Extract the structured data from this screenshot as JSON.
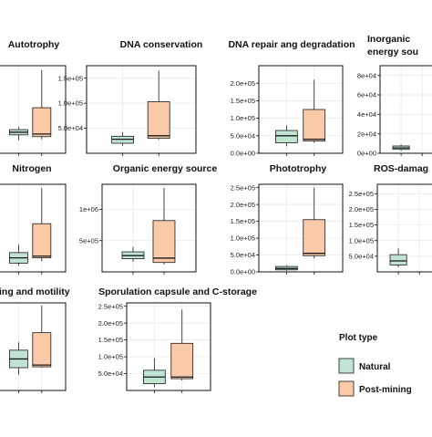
{
  "legend": {
    "title": "Plot type",
    "items": [
      {
        "label": "Natural",
        "color": "#bfe5d2"
      },
      {
        "label": "Post-mining",
        "color": "#f9c9a8"
      }
    ]
  },
  "colors": {
    "natural_fill": "#bfe5d2",
    "postmining_fill": "#f9c9a8",
    "stroke": "#1a1a1a",
    "grid": "#e6e6e6"
  },
  "chart_data": [
    {
      "type": "box",
      "title": "Autotrophy",
      "ylim": [
        0,
        1
      ],
      "y_ticks": [],
      "y_tick_labels": [],
      "boxes": [
        {
          "group": "Natural",
          "whisker_min": 0.15,
          "q1": 0.21,
          "median": 0.24,
          "q3": 0.27,
          "whisker_max": 0.3
        },
        {
          "group": "Post-mining",
          "whisker_min": 0.16,
          "q1": 0.19,
          "median": 0.22,
          "q3": 0.52,
          "whisker_max": 0.95
        }
      ]
    },
    {
      "type": "box",
      "title": "DNA conservation",
      "ylim": [
        0,
        175000
      ],
      "y_ticks": [
        50000,
        100000,
        150000
      ],
      "y_tick_labels": [
        "5.0e+04",
        "1.0e+05",
        "1.5e+05"
      ],
      "boxes": [
        {
          "group": "Natural",
          "whisker_min": 15000,
          "q1": 20000,
          "median": 28000,
          "q3": 34000,
          "whisker_max": 42000
        },
        {
          "group": "Post-mining",
          "whisker_min": 27000,
          "q1": 30000,
          "median": 35000,
          "q3": 103000,
          "whisker_max": 165000
        }
      ]
    },
    {
      "type": "box",
      "title": "DNA repair ang degradation",
      "ylim": [
        0,
        250000
      ],
      "y_ticks": [
        0,
        50000,
        100000,
        150000,
        200000
      ],
      "y_tick_labels": [
        "0.0e+00",
        "5.0e+04",
        "1.0e+05",
        "1.5e+05",
        "2.0e+05"
      ],
      "boxes": [
        {
          "group": "Natural",
          "whisker_min": 20000,
          "q1": 30000,
          "median": 50000,
          "q3": 65000,
          "whisker_max": 80000
        },
        {
          "group": "Post-mining",
          "whisker_min": 30000,
          "q1": 35000,
          "median": 40000,
          "q3": 125000,
          "whisker_max": 210000
        }
      ]
    },
    {
      "type": "box",
      "title": "Inorganic energy sou",
      "ylim": [
        0,
        90000
      ],
      "y_ticks": [
        0,
        20000,
        40000,
        60000,
        80000
      ],
      "y_tick_labels": [
        "0e+00",
        "2e+04",
        "4e+04",
        "6e+04",
        "8e+04"
      ],
      "boxes": [
        {
          "group": "Natural",
          "whisker_min": 2500,
          "q1": 4000,
          "median": 5500,
          "q3": 7500,
          "whisker_max": 9000
        }
      ]
    },
    {
      "type": "box",
      "title": "Nitrogen",
      "ylim": [
        0,
        1
      ],
      "y_ticks": [],
      "y_tick_labels": [],
      "boxes": [
        {
          "group": "Natural",
          "whisker_min": 0.07,
          "q1": 0.1,
          "median": 0.16,
          "q3": 0.22,
          "whisker_max": 0.31
        },
        {
          "group": "Post-mining",
          "whisker_min": 0.12,
          "q1": 0.16,
          "median": 0.18,
          "q3": 0.55,
          "whisker_max": 0.96
        }
      ]
    },
    {
      "type": "box",
      "title": "Organic energy source",
      "ylim": [
        0,
        1400000
      ],
      "y_ticks": [
        500000,
        1000000
      ],
      "y_tick_labels": [
        "5e+05",
        "1e+06"
      ],
      "boxes": [
        {
          "group": "Natural",
          "whisker_min": 160000,
          "q1": 210000,
          "median": 260000,
          "q3": 320000,
          "whisker_max": 400000
        },
        {
          "group": "Post-mining",
          "whisker_min": 120000,
          "q1": 150000,
          "median": 220000,
          "q3": 820000,
          "whisker_max": 1340000
        }
      ]
    },
    {
      "type": "box",
      "title": "Phototrophy",
      "ylim": [
        0,
        260000
      ],
      "y_ticks": [
        0,
        50000,
        100000,
        150000,
        200000,
        250000
      ],
      "y_tick_labels": [
        "0.0e+00",
        "5.0e+04",
        "1.0e+05",
        "1.5e+05",
        "2.0e+05",
        "2.5e+05"
      ],
      "boxes": [
        {
          "group": "Natural",
          "whisker_min": 3000,
          "q1": 6000,
          "median": 10000,
          "q3": 16000,
          "whisker_max": 20000
        },
        {
          "group": "Post-mining",
          "whisker_min": 40000,
          "q1": 48000,
          "median": 55000,
          "q3": 155000,
          "whisker_max": 250000
        }
      ]
    },
    {
      "type": "box",
      "title": "ROS-damag",
      "ylim": [
        0,
        280000
      ],
      "y_ticks": [
        50000,
        100000,
        150000,
        200000,
        250000
      ],
      "y_tick_labels": [
        "5.0e+04",
        "1.0e+05",
        "1.5e+05",
        "2.0e+05",
        "2.5e+05"
      ],
      "boxes": [
        {
          "group": "Natural",
          "whisker_min": 15000,
          "q1": 22000,
          "median": 35000,
          "q3": 55000,
          "whisker_max": 75000
        }
      ]
    },
    {
      "type": "box",
      "title": "ing and motility",
      "ylim": [
        0,
        1
      ],
      "y_ticks": [],
      "y_tick_labels": [],
      "boxes": [
        {
          "group": "Natural",
          "whisker_min": 0.18,
          "q1": 0.26,
          "median": 0.36,
          "q3": 0.46,
          "whisker_max": 0.55
        },
        {
          "group": "Post-mining",
          "whisker_min": 0.26,
          "q1": 0.27,
          "median": 0.29,
          "q3": 0.66,
          "whisker_max": 0.97
        }
      ]
    },
    {
      "type": "box",
      "title": "Sporulation capsule and C-storage",
      "ylim": [
        0,
        260000
      ],
      "y_ticks": [
        50000,
        100000,
        150000,
        200000,
        250000
      ],
      "y_tick_labels": [
        "5.0e+04",
        "1.0e+05",
        "1.5e+05",
        "2.0e+05",
        "2.5e+05"
      ],
      "boxes": [
        {
          "group": "Natural",
          "whisker_min": 10000,
          "q1": 20000,
          "median": 40000,
          "q3": 60000,
          "whisker_max": 95000
        },
        {
          "group": "Post-mining",
          "whisker_min": 30000,
          "q1": 35000,
          "median": 40000,
          "q3": 140000,
          "whisker_max": 240000
        }
      ]
    }
  ]
}
